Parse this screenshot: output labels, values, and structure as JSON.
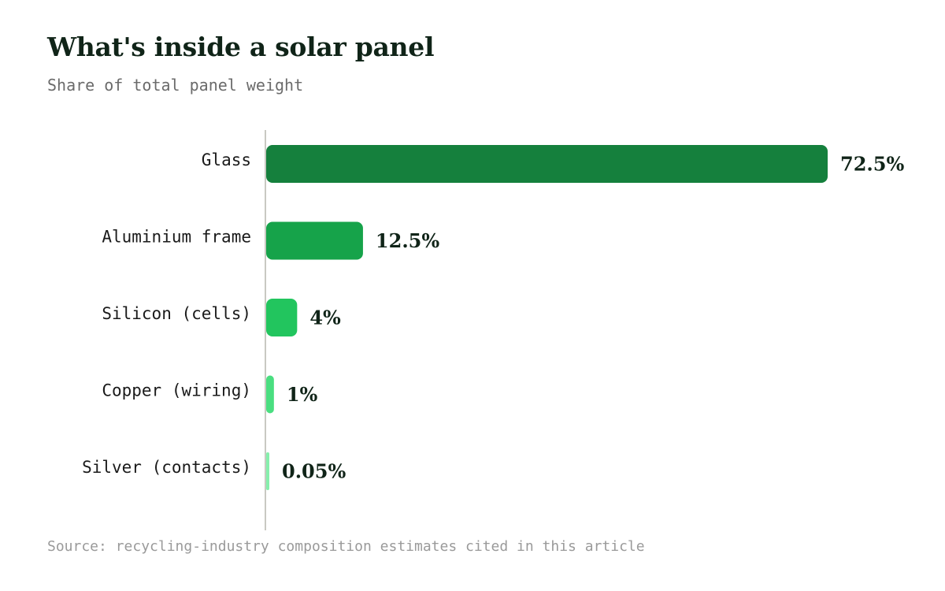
{
  "title": "What's inside a solar panel",
  "subtitle": "Share of total panel weight",
  "source": "Source: recycling-industry composition estimates cited in this article",
  "chart_data": {
    "type": "bar",
    "orientation": "horizontal",
    "title": "What's inside a solar panel",
    "subtitle": "Share of total panel weight",
    "xlabel": "",
    "ylabel": "",
    "unit": "%",
    "xlim": [
      0,
      72.5
    ],
    "grid": false,
    "legend": "none",
    "categories": [
      "Glass",
      "Aluminium frame",
      "Silicon (cells)",
      "Copper (wiring)",
      "Silver (contacts)"
    ],
    "values": [
      72.5,
      12.5,
      4,
      1,
      0.05
    ],
    "value_labels": [
      "72.5%",
      "12.5%",
      "4%",
      "1%",
      "0.05%"
    ],
    "colors": [
      "#15803d",
      "#16a34a",
      "#22c55e",
      "#4ade80",
      "#86efac"
    ]
  }
}
